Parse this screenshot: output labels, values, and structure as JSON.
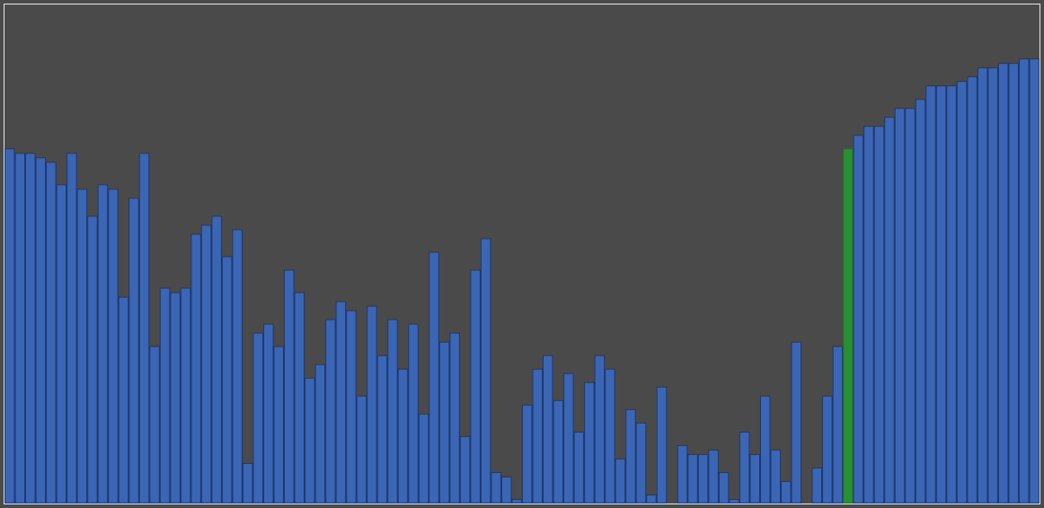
{
  "chart_data": {
    "type": "bar",
    "title": "",
    "xlabel": "",
    "ylabel": "",
    "ylim": [
      0,
      111
    ],
    "grid": false,
    "values": [
      79,
      78,
      78,
      77,
      76,
      71,
      78,
      70,
      64,
      71,
      70,
      46,
      68,
      78,
      35,
      48,
      47,
      48,
      60,
      62,
      64,
      55,
      61,
      9,
      38,
      40,
      35,
      52,
      47,
      28,
      31,
      41,
      45,
      43,
      24,
      44,
      33,
      41,
      30,
      40,
      20,
      56,
      36,
      38,
      15,
      52,
      59,
      7,
      6,
      1,
      22,
      30,
      33,
      23,
      29,
      16,
      27,
      33,
      30,
      10,
      21,
      18,
      2,
      26,
      0,
      13,
      11,
      11,
      12,
      7,
      1,
      16,
      11,
      24,
      12,
      5,
      36,
      0,
      8,
      24,
      35,
      79,
      82,
      84,
      84,
      86,
      88,
      88,
      90,
      93,
      93,
      93,
      94,
      95,
      97,
      97,
      98,
      98,
      99,
      99
    ],
    "highlighted_index": 81,
    "colors": {
      "bar": "#3b66b5",
      "bar_stroke": "#1d3870",
      "highlight": "#2a8f32",
      "highlight_stroke": "#1f6e25",
      "background": "#4a4a4a",
      "border": "#e8e8e8"
    }
  }
}
